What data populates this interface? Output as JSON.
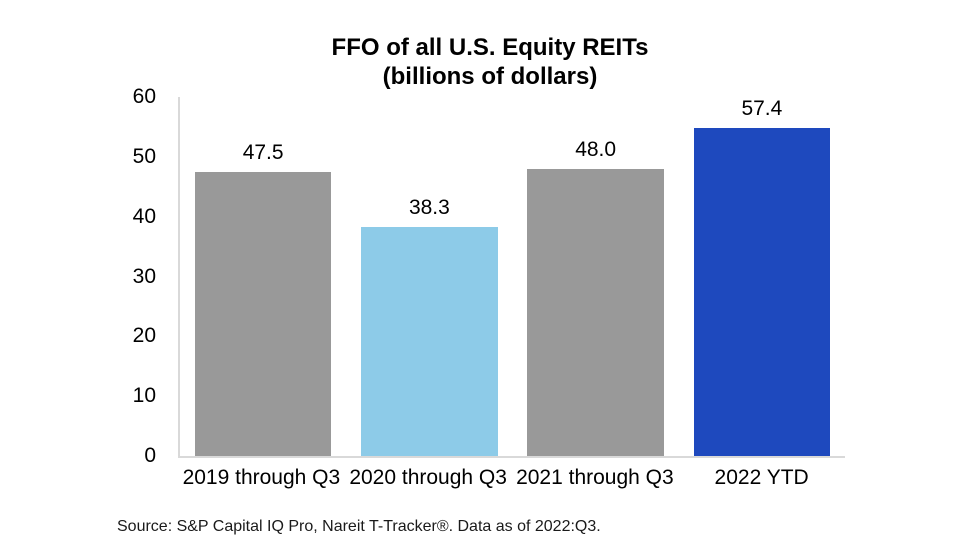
{
  "title": {
    "line1": "FFO of all U.S. Equity REITs",
    "line2": "(billions of dollars)"
  },
  "source_note": "Source: S&P Capital IQ Pro, Nareit T-Tracker®. Data as of 2022:Q3.",
  "chart_data": {
    "type": "bar",
    "title": "FFO of all U.S. Equity REITs (billions of dollars)",
    "categories": [
      "2019 through Q3",
      "2020 through Q3",
      "2021 through Q3",
      "2022 YTD"
    ],
    "values": [
      47.5,
      38.3,
      48.0,
      57.4
    ],
    "value_labels": [
      "47.5",
      "38.3",
      "48.0",
      "57.4"
    ],
    "bar_colors": [
      "#999999",
      "#8DCBE8",
      "#999999",
      "#1E49BE"
    ],
    "xlabel": "",
    "ylabel": "",
    "ylim": [
      0,
      60
    ],
    "yticks": [
      0,
      10,
      20,
      30,
      40,
      50,
      60
    ],
    "grid": false,
    "legend": "none",
    "axis_color": "#d9d9d9",
    "label_color": "#000000"
  }
}
